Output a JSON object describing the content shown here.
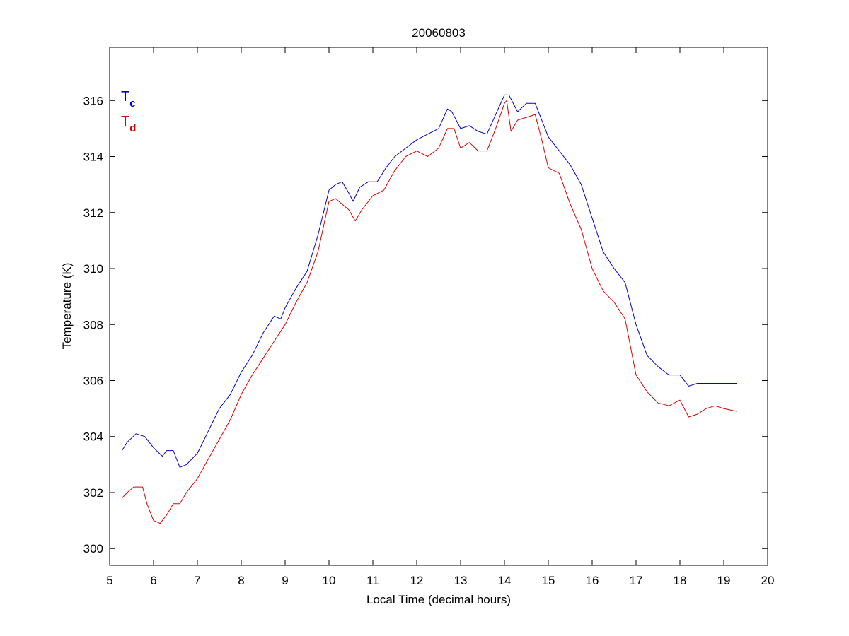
{
  "chart_data": {
    "type": "line",
    "title": "20060803",
    "xlabel": "Local Time (decimal hours)",
    "ylabel": "Temperature (K)",
    "xlim": [
      5,
      20
    ],
    "ylim": [
      299.4,
      317.9
    ],
    "xticks": [
      5,
      6,
      7,
      8,
      9,
      10,
      11,
      12,
      13,
      14,
      15,
      16,
      17,
      18,
      19,
      20
    ],
    "yticks": [
      300,
      302,
      304,
      306,
      308,
      310,
      312,
      314,
      316
    ],
    "grid": false,
    "legend_position": "top-left",
    "series": [
      {
        "name": "T_c",
        "label_main": "T",
        "label_sub": "c",
        "color": "#0000cc",
        "x": [
          5.28,
          5.4,
          5.6,
          5.8,
          6.0,
          6.2,
          6.3,
          6.45,
          6.6,
          6.75,
          7.0,
          7.25,
          7.5,
          7.75,
          8.0,
          8.25,
          8.5,
          8.75,
          8.9,
          9.0,
          9.25,
          9.5,
          9.75,
          10.0,
          10.15,
          10.3,
          10.45,
          10.55,
          10.7,
          10.9,
          11.1,
          11.3,
          11.5,
          11.75,
          12.0,
          12.25,
          12.5,
          12.7,
          12.8,
          13.0,
          13.2,
          13.4,
          13.6,
          13.8,
          14.0,
          14.1,
          14.3,
          14.5,
          14.7,
          14.85,
          15.0,
          15.25,
          15.5,
          15.75,
          16.0,
          16.25,
          16.5,
          16.75,
          17.0,
          17.25,
          17.5,
          17.75,
          18.0,
          18.2,
          18.4,
          18.6,
          18.8,
          19.0,
          19.3
        ],
        "values": [
          303.5,
          303.8,
          304.1,
          304.0,
          303.6,
          303.3,
          303.5,
          303.5,
          302.9,
          303.0,
          303.4,
          304.2,
          305.0,
          305.5,
          306.3,
          306.9,
          307.7,
          308.3,
          308.2,
          308.6,
          309.3,
          309.9,
          311.2,
          312.8,
          313.0,
          313.1,
          312.7,
          312.4,
          312.9,
          313.1,
          313.1,
          313.6,
          314.0,
          314.3,
          314.6,
          314.8,
          315.0,
          315.7,
          315.6,
          315.0,
          315.1,
          314.9,
          314.8,
          315.5,
          316.2,
          316.2,
          315.6,
          315.9,
          315.9,
          315.3,
          314.7,
          314.2,
          313.7,
          313.0,
          311.8,
          310.6,
          310.0,
          309.5,
          308.0,
          306.9,
          306.5,
          306.2,
          306.2,
          305.8,
          305.9,
          305.9,
          305.9,
          305.9,
          305.9
        ]
      },
      {
        "name": "T_d",
        "label_main": "T",
        "label_sub": "d",
        "color": "#dd0000",
        "x": [
          5.28,
          5.4,
          5.55,
          5.75,
          5.85,
          6.0,
          6.15,
          6.3,
          6.45,
          6.6,
          6.75,
          7.0,
          7.25,
          7.5,
          7.75,
          8.0,
          8.25,
          8.5,
          8.75,
          9.0,
          9.25,
          9.5,
          9.75,
          10.0,
          10.15,
          10.3,
          10.45,
          10.6,
          10.75,
          11.0,
          11.25,
          11.5,
          11.75,
          12.0,
          12.25,
          12.5,
          12.7,
          12.85,
          13.0,
          13.2,
          13.4,
          13.6,
          13.8,
          14.0,
          14.05,
          14.15,
          14.3,
          14.5,
          14.7,
          14.85,
          15.0,
          15.25,
          15.5,
          15.75,
          16.0,
          16.25,
          16.5,
          16.75,
          17.0,
          17.25,
          17.5,
          17.75,
          18.0,
          18.2,
          18.4,
          18.6,
          18.8,
          19.0,
          19.3
        ],
        "values": [
          301.8,
          302.0,
          302.2,
          302.2,
          301.6,
          301.0,
          300.9,
          301.2,
          301.6,
          301.6,
          302.0,
          302.5,
          303.2,
          303.9,
          304.6,
          305.5,
          306.2,
          306.8,
          307.4,
          308.0,
          308.8,
          309.5,
          310.6,
          312.4,
          312.5,
          312.3,
          312.1,
          311.7,
          312.1,
          312.6,
          312.8,
          313.5,
          314.0,
          314.2,
          314.0,
          314.3,
          315.0,
          315.0,
          314.3,
          314.5,
          314.2,
          314.2,
          315.0,
          315.9,
          316.0,
          314.9,
          315.3,
          315.4,
          315.5,
          314.6,
          313.6,
          313.4,
          312.3,
          311.4,
          310.0,
          309.2,
          308.8,
          308.2,
          306.2,
          305.6,
          305.2,
          305.1,
          305.3,
          304.7,
          304.8,
          305.0,
          305.1,
          305.0,
          304.9
        ]
      }
    ]
  }
}
